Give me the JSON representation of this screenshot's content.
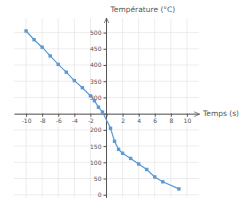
{
  "chart_data": {
    "type": "line",
    "x": [
      -10,
      -9,
      -8,
      -7,
      -6,
      -5,
      -4,
      -3,
      -2,
      -1.5,
      -1,
      -0.5,
      0.5,
      1,
      1.5,
      2,
      3,
      4,
      5,
      6,
      7,
      9
    ],
    "values": [
      505,
      478,
      455,
      428,
      402,
      378,
      352,
      330,
      305,
      290,
      270,
      255,
      205,
      165,
      140,
      128,
      112,
      95,
      78,
      55,
      40,
      18
    ],
    "xlabel": "Temps (s)",
    "ylabel": "Température (°C)",
    "xlim": [
      -11.5,
      11.5
    ],
    "ylim": [
      -10,
      545
    ],
    "xticks": [
      -10,
      -8,
      -6,
      -4,
      -2,
      {
        "value": 0,
        "label": null
      },
      2,
      4,
      6,
      8,
      10
    ],
    "yticks": [
      0,
      50,
      100,
      150,
      200,
      {
        "value": 250,
        "label": null
      },
      300,
      350,
      400,
      450,
      500
    ],
    "grid": true,
    "color": "#5b9bd5",
    "marker": "square"
  }
}
